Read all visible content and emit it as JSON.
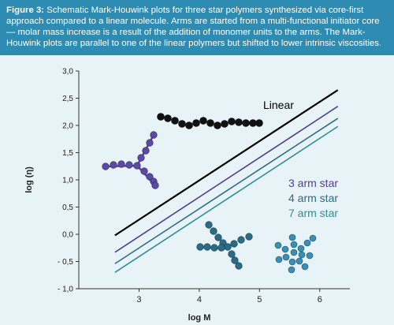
{
  "caption": {
    "label": "Figure 3:",
    "text": "Schematic Mark-Houwink plots for three star polymers synthesized via core-first approach compared to a linear molecule. Arms are started from a multi-functional initiator core — molar mass increase is a result of the addition of monomer units to the arms. The Mark-Houwink plots are parallel to one of the linear polymers but shifted to lower intrinsic viscosities."
  },
  "colors": {
    "caption_bg": "#2e8cb3",
    "chart_bg": "#e8f3f8",
    "linear": "#000000",
    "three_arm": "#4e3f92",
    "four_arm": "#2c6b86",
    "seven_arm": "#2f8c98"
  },
  "chart_data": {
    "type": "line",
    "xlabel": "log M",
    "ylabel": "log (η)",
    "xlim": [
      2.0,
      6.5
    ],
    "ylim": [
      -1.0,
      3.0
    ],
    "xticks": [
      "3",
      "4",
      "5",
      "6"
    ],
    "yticks": [
      "- 1,0",
      "- 0,5",
      "0,0",
      "0,5",
      "1,0",
      "1,5",
      "2,0",
      "2,5",
      "3,0"
    ],
    "grid": false,
    "series": [
      {
        "name": "Linear",
        "x": [
          2.6,
          6.3
        ],
        "y": [
          -0.02,
          2.65
        ]
      },
      {
        "name": "3 arm star",
        "x": [
          2.6,
          6.3
        ],
        "y": [
          -0.33,
          2.35
        ]
      },
      {
        "name": "4 arm star",
        "x": [
          2.6,
          6.3
        ],
        "y": [
          -0.54,
          2.13
        ]
      },
      {
        "name": "7 arm star",
        "x": [
          2.6,
          6.3
        ],
        "y": [
          -0.7,
          1.98
        ]
      }
    ]
  },
  "illustrations": [
    {
      "name": "linear-chain-illustration",
      "color": "#111111"
    },
    {
      "name": "three-arm-star-illustration",
      "color": "#5a4aa5"
    },
    {
      "name": "four-arm-star-illustration",
      "color": "#2c6b86"
    },
    {
      "name": "seven-arm-star-illustration",
      "color": "#3a8fb5"
    }
  ]
}
